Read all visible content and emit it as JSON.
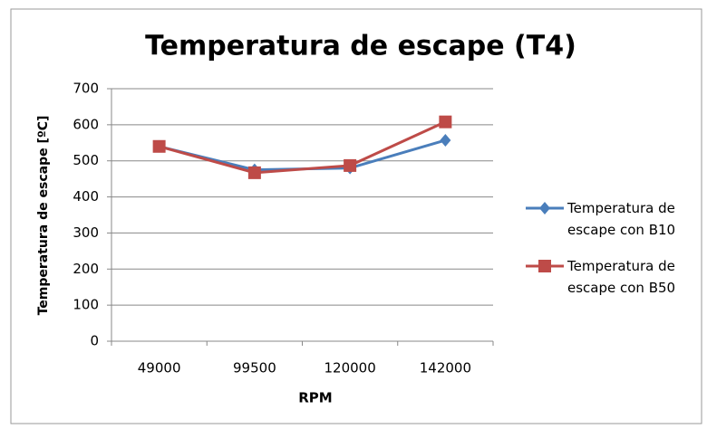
{
  "chart_data": {
    "type": "line",
    "title": "Temperatura de escape (T4)",
    "x_label": "RPM",
    "y_label": "Temperatura de escape [ºC]",
    "categories": [
      "49000",
      "99500",
      "120000",
      "142000"
    ],
    "series": [
      {
        "name": "Temperatura de escape con B10",
        "color": "#4a7ebb",
        "marker": "diamond",
        "values": [
          540,
          475,
          480,
          557
        ]
      },
      {
        "name": "Temperatura de escape con B50",
        "color": "#be4b48",
        "marker": "square",
        "values": [
          540,
          467,
          487,
          608
        ]
      }
    ],
    "ylim": [
      0,
      700
    ],
    "yticks": [
      0,
      100,
      200,
      300,
      400,
      500,
      600,
      700
    ],
    "grid": true,
    "legend": "right"
  }
}
